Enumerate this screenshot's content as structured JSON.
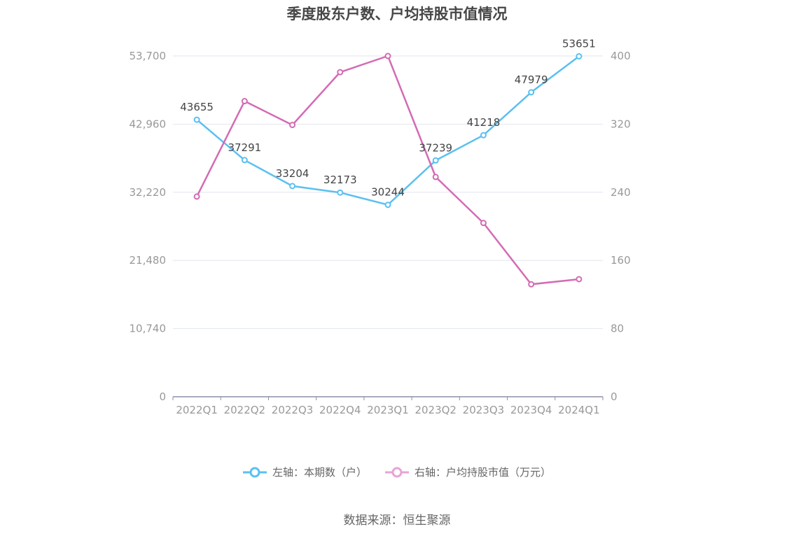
{
  "chart_data": {
    "type": "line",
    "title": "季度股东户数、户均持股市值情况",
    "categories": [
      "2022Q1",
      "2022Q2",
      "2022Q3",
      "2022Q4",
      "2023Q1",
      "2023Q2",
      "2023Q3",
      "2023Q4",
      "2024Q1"
    ],
    "left_axis": {
      "ticks": [
        "0",
        "10,740",
        "21,480",
        "32,220",
        "42,960",
        "53,700"
      ],
      "ylim": [
        0,
        53700
      ]
    },
    "right_axis": {
      "ticks": [
        "0",
        "80",
        "160",
        "240",
        "320",
        "400"
      ],
      "ylim": [
        0,
        400
      ]
    },
    "grid": true,
    "legend_position": "bottom",
    "series": [
      {
        "name": "左轴：本期数（户）",
        "axis": "left",
        "color": "#5bc0f0",
        "values": [
          43655,
          37291,
          33204,
          32173,
          30244,
          37239,
          41218,
          47979,
          53651
        ],
        "labels": [
          "43655",
          "37291",
          "33204",
          "32173",
          "30244",
          "37239",
          "41218",
          "47979",
          "53651"
        ]
      },
      {
        "name": "右轴：户均持股市值（万元）",
        "axis": "right",
        "color": "#d46bb4",
        "values": [
          235,
          347,
          319,
          381,
          400,
          258,
          204,
          132,
          138
        ]
      }
    ]
  },
  "source": "数据来源：恒生聚源"
}
